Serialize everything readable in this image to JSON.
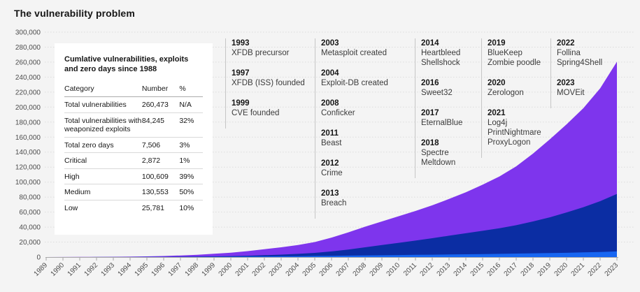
{
  "page": {
    "title": "The vulnerability problem",
    "background_color": "#f4f4f4"
  },
  "info_card": {
    "title": "Cumlative vulnerabilities, exploits and zero days since 1988",
    "columns": [
      "Category",
      "Number",
      "%"
    ],
    "rows": [
      {
        "category": "Total vulnerabilities",
        "number": "260,473",
        "percent": "N/A"
      },
      {
        "category": "Total vulnerabilities with weaponized exploits",
        "number": "84,245",
        "percent": "32%"
      },
      {
        "category": "Total zero days",
        "number": "7,506",
        "percent": "3%"
      },
      {
        "category": "Critical",
        "number": "2,872",
        "percent": "1%"
      },
      {
        "category": "High",
        "number": "100,609",
        "percent": "39%"
      },
      {
        "category": "Medium",
        "number": "130,553",
        "percent": "50%"
      },
      {
        "category": "Low",
        "number": "25,781",
        "percent": "10%"
      }
    ]
  },
  "timeline": {
    "columns": [
      {
        "entries": [
          {
            "year": "1993",
            "events": [
              "XFDB precursor"
            ]
          },
          {
            "year": "1997",
            "events": [
              "XFDB (ISS) founded"
            ]
          },
          {
            "year": "1999",
            "events": [
              "CVE founded"
            ]
          }
        ]
      },
      {
        "entries": [
          {
            "year": "2003",
            "events": [
              "Metasploit created"
            ]
          },
          {
            "year": "2004",
            "events": [
              "Exploit-DB created"
            ]
          },
          {
            "year": "2008",
            "events": [
              "Conficker"
            ]
          },
          {
            "year": "2011",
            "events": [
              "Beast"
            ]
          },
          {
            "year": "2012",
            "events": [
              "Crime"
            ]
          },
          {
            "year": "2013",
            "events": [
              "Breach"
            ]
          }
        ]
      },
      {
        "entries": [
          {
            "year": "2014",
            "events": [
              "Heartbleed",
              "Shellshock"
            ]
          },
          {
            "year": "2016",
            "events": [
              "Sweet32"
            ]
          },
          {
            "year": "2017",
            "events": [
              "EternalBlue"
            ]
          },
          {
            "year": "2018",
            "events": [
              "Spectre",
              "Meltdown"
            ]
          }
        ]
      },
      {
        "entries": [
          {
            "year": "2019",
            "events": [
              "BlueKeep",
              "Zombie poodle"
            ]
          },
          {
            "year": "2020",
            "events": [
              "Zerologon"
            ]
          },
          {
            "year": "2021",
            "events": [
              "Log4j",
              "PrintNightmare",
              "ProxyLogon"
            ]
          }
        ]
      },
      {
        "entries": [
          {
            "year": "2022",
            "events": [
              "Follina",
              "Spring4Shell"
            ]
          },
          {
            "year": "2023",
            "events": [
              "MOVEit"
            ]
          }
        ]
      }
    ]
  },
  "chart_data": {
    "type": "area",
    "title": "The vulnerability problem",
    "subtitle": "Cumlative vulnerabilities, exploits and zero days since 1988",
    "stacked": false,
    "grid": true,
    "legend": "none",
    "ylim": [
      0,
      300000
    ],
    "ytick_step": 20000,
    "x": [
      1989,
      1990,
      1991,
      1992,
      1993,
      1994,
      1995,
      1996,
      1997,
      1998,
      1999,
      2000,
      2001,
      2002,
      2003,
      2004,
      2005,
      2006,
      2007,
      2008,
      2009,
      2010,
      2011,
      2012,
      2013,
      2014,
      2015,
      2016,
      2017,
      2018,
      2019,
      2020,
      2021,
      2022,
      2023
    ],
    "series": [
      {
        "name": "Total vulnerabilities",
        "color": "#7e35ed",
        "values": [
          30,
          80,
          150,
          250,
          400,
          600,
          900,
          1400,
          2100,
          3000,
          4400,
          5900,
          7900,
          10500,
          13000,
          16000,
          20000,
          26000,
          33000,
          40500,
          47500,
          54500,
          61500,
          69000,
          77500,
          86500,
          96500,
          107500,
          121000,
          138000,
          157000,
          177000,
          198500,
          225000,
          260473
        ]
      },
      {
        "name": "Total vulnerabilities with weaponized exploits",
        "color": "#0b2da3",
        "values": [
          5,
          15,
          30,
          50,
          80,
          120,
          180,
          280,
          420,
          650,
          950,
          1300,
          1800,
          2500,
          3300,
          4300,
          5600,
          7500,
          10000,
          13000,
          16000,
          19000,
          22000,
          25200,
          28500,
          31800,
          35000,
          38500,
          42500,
          47500,
          53000,
          59500,
          66500,
          74500,
          84245
        ]
      },
      {
        "name": "Total zero days",
        "color": "#1766f2",
        "values": [
          0,
          0,
          5,
          10,
          20,
          35,
          55,
          80,
          120,
          200,
          350,
          500,
          650,
          800,
          1000,
          1200,
          1450,
          1700,
          1950,
          2200,
          2450,
          2700,
          2950,
          3200,
          3450,
          3700,
          4000,
          4300,
          4650,
          5000,
          5350,
          5700,
          6200,
          6800,
          7506
        ]
      }
    ]
  }
}
